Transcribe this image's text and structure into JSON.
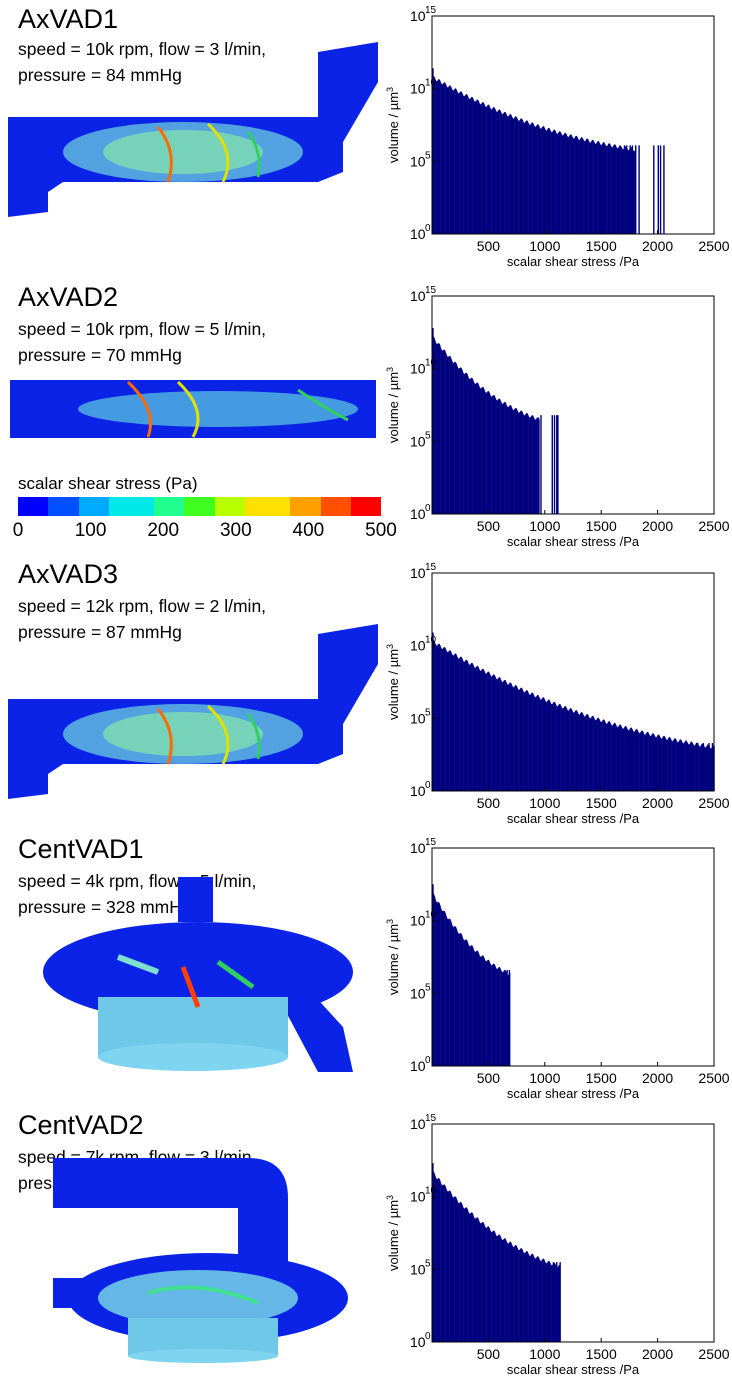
{
  "colors": {
    "bar": "#00007f",
    "background_fluid": "#0a23e6"
  },
  "colorbar": {
    "label": "scalar shear stress (Pa)",
    "ticks": [
      "0",
      "100",
      "200",
      "300",
      "400",
      "500"
    ],
    "gradient": [
      "#0000ff",
      "#0050ff",
      "#00aaff",
      "#00e8e8",
      "#20ff90",
      "#40ff20",
      "#b8ff00",
      "#ffe000",
      "#ffa000",
      "#ff5000",
      "#ff0000"
    ]
  },
  "panels": [
    {
      "name": "AxVAD1",
      "line1": "speed = 10k rpm, flow = 3 l/min,",
      "line2": "pressure = 84 mmHg",
      "shape": "axial"
    },
    {
      "name": "AxVAD2",
      "line1": "speed = 10k rpm, flow = 5 l/min,",
      "line2": "pressure = 70 mmHg",
      "shape": "axial-straight"
    },
    {
      "name": "AxVAD3",
      "line1": "speed = 12k rpm, flow = 2 l/min,",
      "line2": "pressure = 87 mmHg",
      "shape": "axial"
    },
    {
      "name": "CentVAD1",
      "line1": "speed = 4k rpm, flow = 5 l/min,",
      "line2": "pressure = 328 mmHg",
      "shape": "centrifugal"
    },
    {
      "name": "CentVAD2",
      "line1": "speed = 7k rpm, flow = 3 l/min,",
      "line2": "pressure = 124 mmHg",
      "shape": "centrifugal2"
    }
  ],
  "chart_data": [
    {
      "type": "bar",
      "title": "",
      "xlabel": "scalar shear stress /Pa",
      "ylabel": "volume / µm",
      "ylabel_superscript": "3",
      "yscale": "log",
      "xlim": [
        0,
        2500
      ],
      "xticks": [
        "500",
        "1000",
        "1500",
        "2000",
        "2500"
      ],
      "yticks_exp": [
        "0",
        "5",
        "10",
        "15"
      ],
      "ylim_exp": [
        0,
        15
      ],
      "start_exp": 10.8,
      "decay_end": 1800,
      "end_exp": 5.8,
      "max_x": 2050,
      "spikes": [
        1500,
        1520,
        1700,
        1720,
        1750,
        1770,
        1800,
        1830,
        1960,
        2000,
        2020,
        2050
      ]
    },
    {
      "type": "bar",
      "title": "",
      "xlabel": "scalar shear stress /Pa",
      "ylabel": "volume / µm",
      "ylabel_superscript": "3",
      "yscale": "log",
      "xlim": [
        0,
        2500
      ],
      "xticks": [
        "500",
        "1000",
        "1500",
        "2000",
        "2500"
      ],
      "yticks_exp": [
        "0",
        "5",
        "10",
        "15"
      ],
      "ylim_exp": [
        0,
        15
      ],
      "start_exp": 12.2,
      "decay_end": 950,
      "end_exp": 6.5,
      "max_x": 1110,
      "spikes": [
        760,
        780,
        800,
        960,
        1060,
        1080,
        1100,
        1110
      ]
    },
    {
      "type": "bar",
      "title": "",
      "xlabel": "scalar shear stress /Pa",
      "ylabel": "volume / µm",
      "ylabel_superscript": "3",
      "yscale": "log",
      "xlim": [
        0,
        2500
      ],
      "xticks": [
        "500",
        "1000",
        "1500",
        "2000",
        "2500"
      ],
      "yticks_exp": [
        "0",
        "5",
        "10",
        "15"
      ],
      "ylim_exp": [
        0,
        15
      ],
      "start_exp": 10.3,
      "decay_end": 2500,
      "end_exp": 3.0,
      "max_x": 2500,
      "spikes": [
        1650,
        1680,
        1700,
        1720,
        1750,
        1800,
        1900,
        1960,
        2000,
        2050,
        2100,
        2200,
        2300,
        2350,
        2400,
        2450,
        2480
      ]
    },
    {
      "type": "bar",
      "title": "",
      "xlabel": "scalar shear stress /Pa",
      "ylabel": "volume / µm",
      "ylabel_superscript": "3",
      "yscale": "log",
      "xlim": [
        0,
        2500
      ],
      "xticks": [
        "500",
        "1000",
        "1500",
        "2000",
        "2500"
      ],
      "yticks_exp": [
        "0",
        "5",
        "10",
        "15"
      ],
      "ylim_exp": [
        0,
        15
      ],
      "start_exp": 11.9,
      "decay_end": 690,
      "end_exp": 6.3,
      "max_x": 690,
      "spikes": [
        640,
        660,
        680
      ]
    },
    {
      "type": "bar",
      "title": "",
      "xlabel": "scalar shear stress /Pa",
      "ylabel": "volume / µm",
      "ylabel_superscript": "3",
      "yscale": "log",
      "xlim": [
        0,
        2500
      ],
      "xticks": [
        "500",
        "1000",
        "1500",
        "2000",
        "2500"
      ],
      "yticks_exp": [
        "0",
        "5",
        "10",
        "15"
      ],
      "ylim_exp": [
        0,
        15
      ],
      "start_exp": 11.7,
      "decay_end": 1130,
      "end_exp": 5.2,
      "max_x": 1130,
      "spikes": [
        1070,
        1100,
        1130
      ]
    }
  ]
}
